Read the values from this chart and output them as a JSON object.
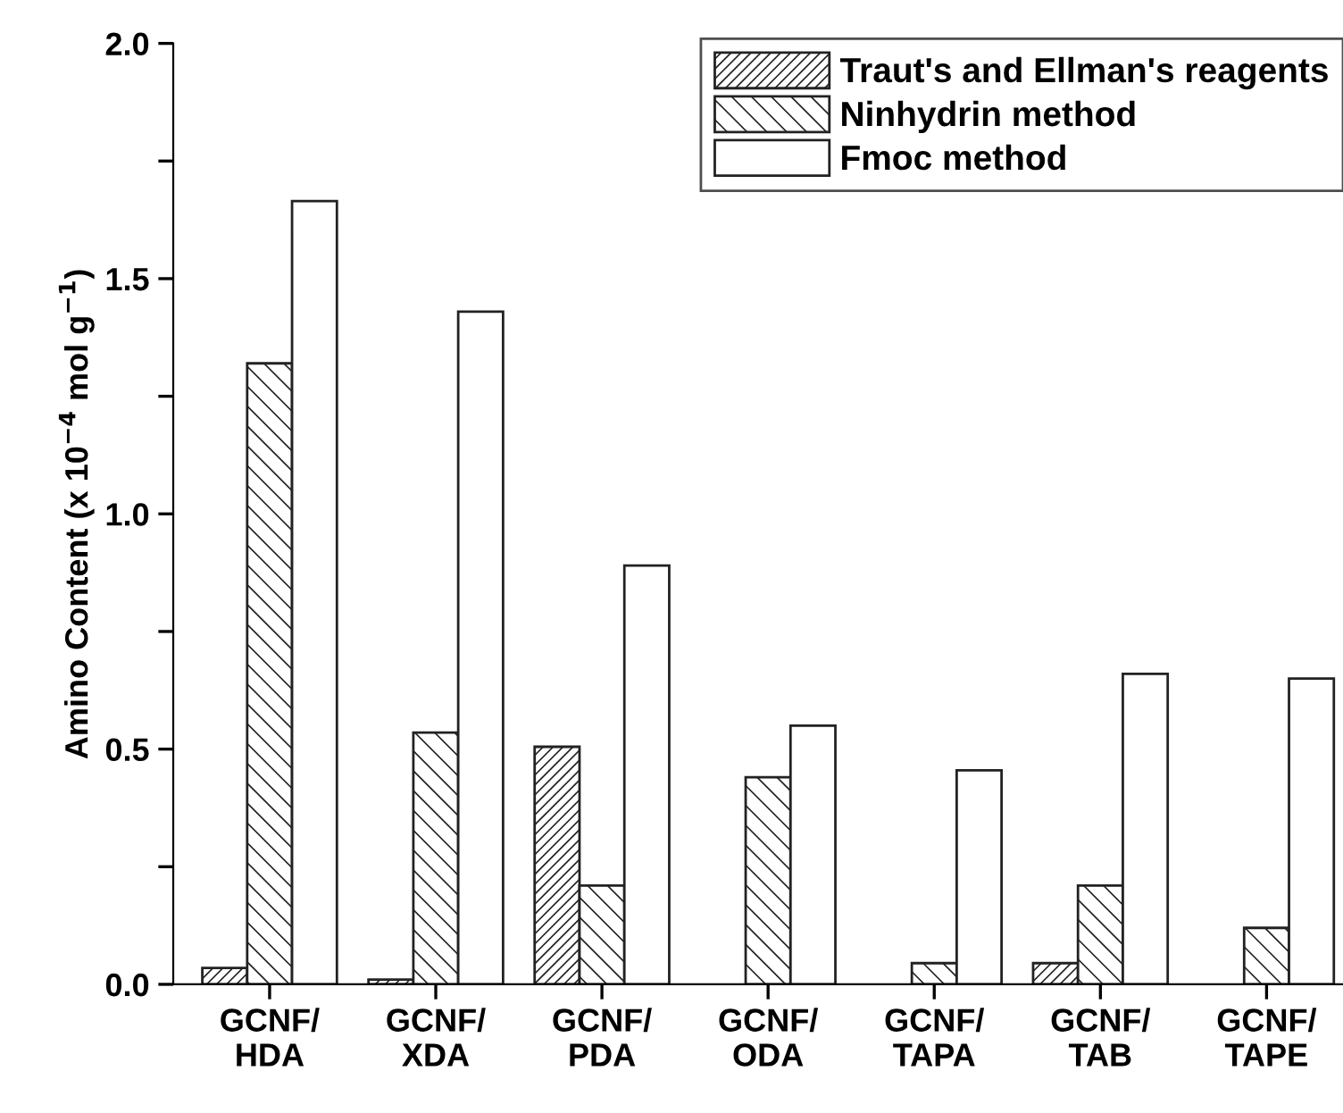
{
  "chart_data": {
    "type": "bar",
    "ylabel": "Amino Content (x 10$^{−4}$ mol g$^{−1}$)",
    "categories": [
      "GCNF/\nHDA",
      "GCNF/\nXDA",
      "GCNF/\nPDA",
      "GCNF/\nODA",
      "GCNF/\nTAPA",
      "GCNF/\nTAB",
      "GCNF/\nTAPE"
    ],
    "series": [
      {
        "name": "Traut's and Ellman's reagents",
        "color": "#222222",
        "values": [
          0.035,
          0.01,
          0.505,
          null,
          null,
          0.045,
          null
        ]
      },
      {
        "name": "Ninhydrin method",
        "color": "#222222",
        "values": [
          1.32,
          0.535,
          0.21,
          0.44,
          0.045,
          0.21,
          0.12
        ]
      },
      {
        "name": "Fmoc method",
        "color": "#ffffff",
        "values": [
          1.665,
          1.43,
          0.89,
          0.55,
          0.455,
          0.66,
          0.65
        ]
      }
    ],
    "ylim": [
      0,
      2.0
    ],
    "yticks": [
      {
        "value": 0,
        "label": "0.0"
      },
      {
        "value": 0.25,
        "label": null
      },
      0.5,
      {
        "value": 0.75,
        "label": null
      },
      {
        "value": 1,
        "label": "1.0"
      },
      {
        "value": 1.25,
        "label": null
      },
      1.5,
      {
        "value": 1.75,
        "label": null
      },
      {
        "value": 2,
        "label": "2.0"
      }
    ],
    "grid": false,
    "legend": "top right"
  }
}
